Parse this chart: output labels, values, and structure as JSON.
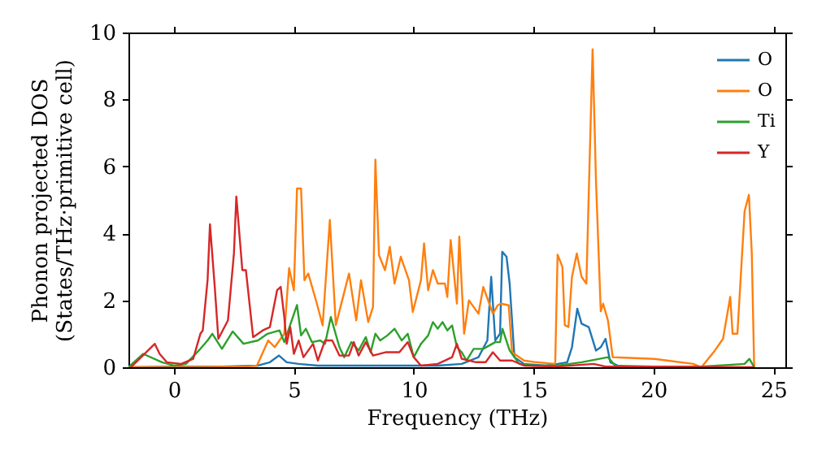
{
  "chart_data": {
    "type": "line",
    "xlabel": "Frequency (THz)",
    "ylabel": "Phonon projected DOS\n(States/THz·primitive cell)",
    "xlim": [
      -1.9,
      25.5
    ],
    "ylim": [
      0,
      10
    ],
    "xticks": [
      0,
      5,
      10,
      15,
      20,
      25
    ],
    "yticks": [
      0,
      2,
      4,
      6,
      8,
      10
    ],
    "grid": false,
    "legend": "top right",
    "marker": "none",
    "line_style": "solid",
    "series": [
      {
        "name": "O",
        "color": "#1f77b4",
        "x": [
          -1.9,
          0,
          2,
          3.5,
          4.0,
          4.38,
          4.7,
          5.2,
          6,
          7,
          8,
          9,
          10,
          11,
          12,
          12.7,
          13.07,
          13.23,
          13.4,
          13.6,
          13.69,
          13.87,
          14.0,
          14.2,
          14.6,
          15.5,
          16.0,
          16.4,
          16.6,
          16.82,
          17.0,
          17.3,
          17.6,
          17.8,
          18.0,
          18.2,
          18.5
        ],
        "values": [
          0,
          0.02,
          0.02,
          0.05,
          0.15,
          0.35,
          0.15,
          0.1,
          0.05,
          0.05,
          0.05,
          0.05,
          0.05,
          0.05,
          0.1,
          0.3,
          0.8,
          2.7,
          0.8,
          1.0,
          3.45,
          3.3,
          2.5,
          0.3,
          0.1,
          0.05,
          0.1,
          0.15,
          0.6,
          1.75,
          1.3,
          1.2,
          0.5,
          0.6,
          0.85,
          0.15,
          0.05
        ]
      },
      {
        "name": "O",
        "color": "#ff7f0e",
        "x": [
          -1.9,
          0,
          3,
          3.46,
          3.93,
          4.2,
          4.6,
          4.8,
          5.0,
          5.13,
          5.3,
          5.44,
          5.6,
          5.96,
          6.2,
          6.5,
          6.75,
          7.3,
          7.6,
          7.8,
          8.1,
          8.3,
          8.4,
          8.55,
          8.8,
          9.0,
          9.2,
          9.46,
          9.8,
          9.96,
          10.3,
          10.43,
          10.6,
          10.8,
          11.0,
          11.3,
          11.4,
          11.54,
          11.8,
          11.9,
          12.1,
          12.3,
          12.7,
          12.9,
          13.3,
          13.5,
          13.64,
          13.96,
          14.1,
          14.6,
          15.1,
          15.9,
          16.0,
          16.2,
          16.3,
          16.45,
          16.6,
          16.8,
          17.0,
          17.2,
          17.46,
          17.6,
          17.8,
          17.9,
          18.1,
          18.3,
          20.05,
          21.66,
          22.0,
          22.56,
          22.9,
          23.2,
          23.3,
          23.5,
          23.8,
          23.98,
          24.1,
          24.2
        ],
        "values": [
          0,
          0,
          0.02,
          0.05,
          0.8,
          0.6,
          1.0,
          2.96,
          2.3,
          5.34,
          5.34,
          2.6,
          2.8,
          1.9,
          1.25,
          4.4,
          1.26,
          2.8,
          1.4,
          2.6,
          1.35,
          1.8,
          6.2,
          3.35,
          2.9,
          3.6,
          2.5,
          3.3,
          2.6,
          1.65,
          2.6,
          3.7,
          2.3,
          2.9,
          2.5,
          2.5,
          2.1,
          3.8,
          1.9,
          3.9,
          1.0,
          2.0,
          1.6,
          2.4,
          1.6,
          1.85,
          1.9,
          1.85,
          0.45,
          0.2,
          0.15,
          0.1,
          3.36,
          3.0,
          1.26,
          1.2,
          2.7,
          3.4,
          2.7,
          2.5,
          9.5,
          5.6,
          1.67,
          1.9,
          1.4,
          0.3,
          0.25,
          0.1,
          0,
          0.5,
          0.85,
          2.1,
          1.0,
          1.0,
          4.66,
          5.15,
          3.4,
          0
        ]
      },
      {
        "name": "Ti",
        "color": "#2ca02c",
        "x": [
          -1.9,
          -1.29,
          -0.5,
          0,
          0.5,
          1.1,
          1.4,
          1.6,
          2.0,
          2.45,
          2.9,
          3.5,
          3.9,
          4.4,
          4.6,
          5.13,
          5.3,
          5.5,
          5.75,
          6.1,
          6.3,
          6.54,
          6.9,
          7.1,
          7.4,
          7.7,
          8.0,
          8.2,
          8.4,
          8.6,
          8.9,
          9.2,
          9.5,
          9.75,
          10.0,
          10.3,
          10.6,
          10.8,
          11.0,
          11.2,
          11.4,
          11.6,
          11.8,
          12.0,
          12.2,
          12.5,
          12.9,
          13.4,
          13.6,
          13.7,
          14.0,
          14.4,
          15,
          16,
          17,
          18.1,
          18.4,
          20,
          22,
          23.8,
          24.0,
          24.2
        ],
        "values": [
          0,
          0.4,
          0.15,
          0.05,
          0.1,
          0.55,
          0.8,
          1.0,
          0.55,
          1.07,
          0.7,
          0.8,
          1.0,
          1.1,
          0.75,
          1.86,
          0.95,
          1.15,
          0.75,
          0.8,
          0.7,
          1.5,
          0.6,
          0.3,
          0.75,
          0.5,
          0.9,
          0.45,
          1.0,
          0.8,
          0.95,
          1.15,
          0.8,
          1.0,
          0.3,
          0.7,
          0.95,
          1.35,
          1.15,
          1.35,
          1.1,
          1.25,
          0.6,
          0.45,
          0.2,
          0.55,
          0.55,
          0.75,
          0.75,
          1.15,
          0.5,
          0.1,
          0.05,
          0.05,
          0.15,
          0.3,
          0.05,
          0.02,
          0.02,
          0.1,
          0.25,
          0
        ]
      },
      {
        "name": "Y",
        "color": "#d62728",
        "x": [
          -1.8,
          -1.3,
          -0.8,
          -0.6,
          -0.3,
          0.3,
          0.8,
          1.1,
          1.2,
          1.4,
          1.5,
          1.7,
          1.85,
          2.25,
          2.5,
          2.6,
          2.85,
          3.0,
          3.3,
          3.7,
          4.0,
          4.3,
          4.45,
          4.6,
          4.7,
          4.85,
          5.0,
          5.2,
          5.4,
          5.8,
          6.0,
          6.3,
          6.6,
          6.9,
          7.3,
          7.5,
          7.7,
          8.0,
          8.3,
          8.85,
          9.4,
          9.75,
          10.0,
          10.3,
          11.0,
          11.6,
          11.8,
          12.0,
          12.6,
          13.0,
          13.3,
          13.6,
          14.1,
          14.6,
          16,
          17.5,
          18,
          20,
          24.2
        ],
        "values": [
          0,
          0.35,
          0.7,
          0.4,
          0.15,
          0.1,
          0.25,
          1.0,
          1.1,
          2.6,
          4.27,
          2.4,
          0.85,
          1.4,
          3.4,
          5.1,
          2.9,
          2.9,
          0.9,
          1.1,
          1.2,
          2.3,
          2.4,
          1.5,
          0.7,
          1.2,
          0.4,
          0.8,
          0.3,
          0.7,
          0.2,
          0.8,
          0.8,
          0.35,
          0.35,
          0.75,
          0.35,
          0.75,
          0.35,
          0.45,
          0.45,
          0.75,
          0.3,
          0.05,
          0.1,
          0.3,
          0.7,
          0.25,
          0.15,
          0.15,
          0.45,
          0.2,
          0.2,
          0.05,
          0.02,
          0.1,
          0.02,
          0.02,
          0
        ]
      }
    ]
  }
}
